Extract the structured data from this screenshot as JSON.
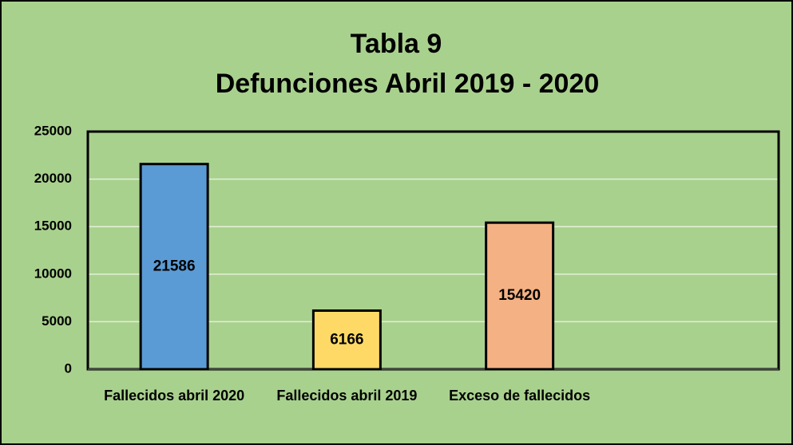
{
  "chart_data": {
    "type": "bar",
    "title": [
      "Tabla 9",
      "Defunciones Abril 2019 - 2020"
    ],
    "categories": [
      "Fallecidos abril 2020",
      "Fallecidos abril 2019",
      "Exceso de fallecidos",
      null
    ],
    "values": [
      21586,
      6166,
      15420,
      null
    ],
    "colors": [
      "#5b9bd5",
      "#ffd966",
      "#f4b183",
      null
    ],
    "ylim": [
      0,
      25000
    ],
    "yticks": [
      0,
      5000,
      10000,
      15000,
      20000,
      25000
    ],
    "grid": true,
    "background": "#a9d18e"
  }
}
